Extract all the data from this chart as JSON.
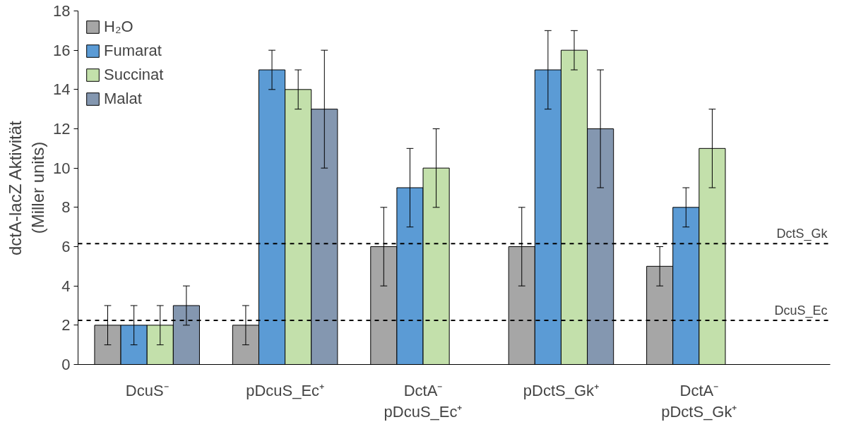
{
  "chart_data": {
    "type": "bar",
    "ylabel": "dctA-lacZ Aktivität\n(Miller units)",
    "categories": [
      "DcuS⁻",
      "pDcuS_Ec⁺",
      "DctA⁻\npDcuS_Ec⁺",
      "pDctS_Gk⁺",
      "DctA⁻\npDctS_Gk⁺"
    ],
    "series": [
      {
        "name": "H₂O",
        "color": "#a6a6a6",
        "values": [
          2,
          2,
          6,
          6,
          5
        ],
        "errors": [
          [
            1,
            3
          ],
          [
            1,
            3
          ],
          [
            4,
            8
          ],
          [
            4,
            8
          ],
          [
            4,
            6
          ]
        ]
      },
      {
        "name": "Fumarat",
        "color": "#5b9bd5",
        "values": [
          2,
          15,
          9,
          15,
          8
        ],
        "errors": [
          [
            1,
            3
          ],
          [
            14,
            16
          ],
          [
            7,
            11
          ],
          [
            13,
            17
          ],
          [
            7,
            9
          ]
        ]
      },
      {
        "name": "Succinat",
        "color": "#c3e0ab",
        "values": [
          2,
          14,
          10,
          16,
          11
        ],
        "errors": [
          [
            1,
            3
          ],
          [
            13,
            15
          ],
          [
            8,
            12
          ],
          [
            15,
            17
          ],
          [
            9,
            13
          ]
        ]
      },
      {
        "name": "Malat",
        "color": "#8497b0",
        "values": [
          3,
          13,
          null,
          12,
          null
        ],
        "errors": [
          [
            2,
            4
          ],
          [
            10,
            16
          ],
          null,
          [
            9,
            15
          ],
          null
        ]
      }
    ],
    "ylim": [
      0,
      18
    ],
    "yticks": [
      0,
      2,
      4,
      6,
      8,
      10,
      12,
      14,
      16,
      18
    ],
    "grid": false,
    "legend": "top left",
    "ref_lines": [
      {
        "axis": "y",
        "value": 2.25,
        "label": "DcuS_Ec",
        "color": "#000000",
        "line_style": "dashed"
      },
      {
        "axis": "y",
        "value": 6.15,
        "label": "DctS_Gk",
        "color": "#000000",
        "line_style": "dashed"
      }
    ]
  }
}
